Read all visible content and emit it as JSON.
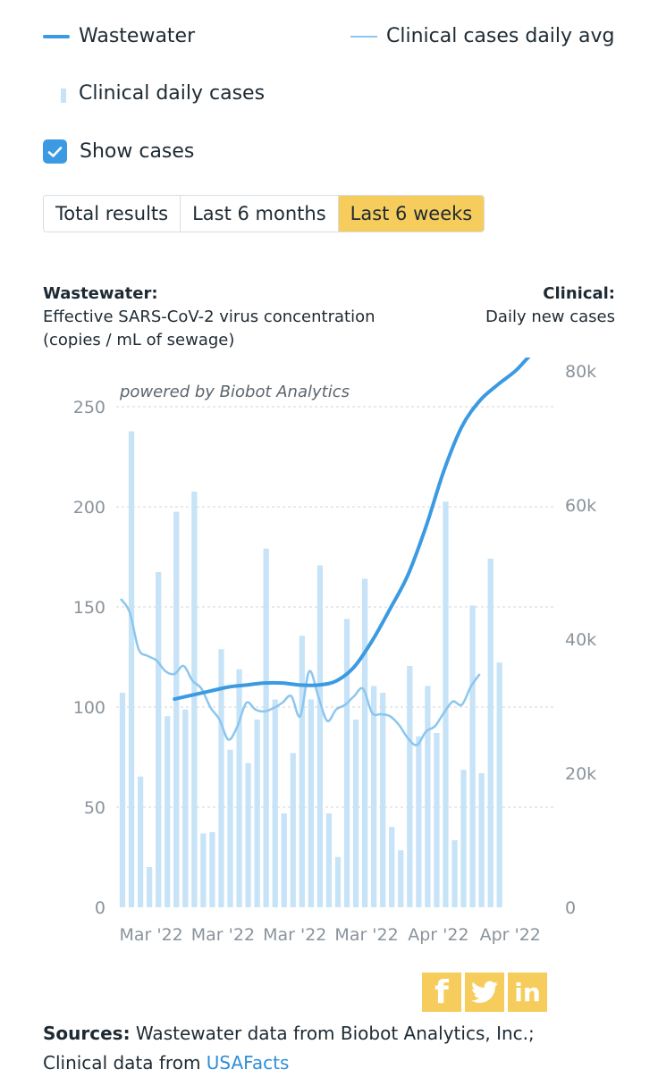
{
  "colors": {
    "wastewater": "#3b9ae1",
    "clinical_avg": "#8cc6ee",
    "clinical_bar": "#c6e3f7",
    "accent": "#f6cd5c",
    "check": "#3b9ae1",
    "link": "#2f8fd8",
    "grid": "#d0d4d8",
    "tick_text": "#8a939b"
  },
  "legend": {
    "wastewater": "Wastewater",
    "clinical_avg": "Clinical cases daily avg",
    "clinical_daily": "Clinical daily cases"
  },
  "show_cases": {
    "label": "Show cases",
    "checked": true
  },
  "ranges": {
    "options": [
      "Total results",
      "Last 6 months",
      "Last 6 weeks"
    ],
    "selected": "Last 6 weeks"
  },
  "left_axis": {
    "title": "Wastewater:",
    "subtitle_1": "Effective SARS-CoV-2 virus concentration",
    "subtitle_2": "(copies / mL of sewage)"
  },
  "right_axis": {
    "title": "Clinical:",
    "subtitle": "Daily new cases"
  },
  "watermark": "powered by Biobot Analytics",
  "chart_data": {
    "type": "bar",
    "left_ylim": [
      0,
      250
    ],
    "left_ticks": [
      0,
      50,
      100,
      150,
      200,
      250
    ],
    "right_ylim": [
      0,
      80000
    ],
    "right_ticks": [
      0,
      20000,
      40000,
      60000,
      80000
    ],
    "right_tick_labels": [
      "0",
      "20k",
      "40k",
      "60k",
      "80k"
    ],
    "x_tick_labels": [
      "Mar '22",
      "Mar '22",
      "Mar '22",
      "Mar '22",
      "Apr '22",
      "Apr '22"
    ],
    "x_tick_days": [
      2,
      10,
      18,
      26,
      34,
      42
    ],
    "days": 49,
    "grid": true,
    "series": [
      {
        "name": "Clinical daily cases",
        "type": "bar",
        "axis": "right",
        "values": [
          32000,
          71000,
          19500,
          6000,
          50000,
          28500,
          59000,
          29500,
          62000,
          11000,
          11200,
          38500,
          23500,
          35500,
          21500,
          28000,
          53500,
          31000,
          14000,
          23000,
          40500,
          31000,
          51000,
          14000,
          7500,
          43000,
          28000,
          49000,
          33000,
          32000,
          12000,
          8500,
          36000,
          25500,
          33000,
          26000,
          60500,
          10000,
          20500,
          45000,
          20000,
          52000,
          36500
        ]
      },
      {
        "name": "Clinical cases daily avg",
        "type": "line",
        "axis": "right",
        "values": [
          46000,
          44000,
          38500,
          37500,
          36800,
          35200,
          34800,
          36000,
          33800,
          32600,
          29800,
          28000,
          25000,
          27000,
          30500,
          29500,
          29200,
          29700,
          30500,
          31500,
          28500,
          35200,
          31500,
          27800,
          29500,
          30200,
          31500,
          32600,
          29000,
          28800,
          28500,
          27200,
          25200,
          24200,
          26200,
          27000,
          29000,
          30700,
          30200,
          32900,
          34800
        ]
      },
      {
        "name": "Wastewater",
        "type": "line",
        "axis": "left",
        "x": [
          6,
          8,
          10,
          12,
          14,
          16,
          18,
          20,
          22,
          24,
          26,
          28,
          30,
          32,
          34,
          36,
          38,
          40,
          42,
          44,
          46,
          48
        ],
        "values": [
          104,
          106,
          108,
          110,
          111,
          112,
          112,
          111,
          111,
          113,
          120,
          133,
          149,
          166,
          190,
          218,
          240,
          253,
          261,
          268,
          277,
          280
        ]
      }
    ]
  },
  "share": {
    "facebook": "f",
    "twitter": "twitter-icon",
    "linkedin": "in"
  },
  "sources": {
    "label": "Sources:",
    "line1": " Wastewater data from Biobot Analytics, Inc.;",
    "line2": "Clinical data from ",
    "link": "USAFacts"
  }
}
